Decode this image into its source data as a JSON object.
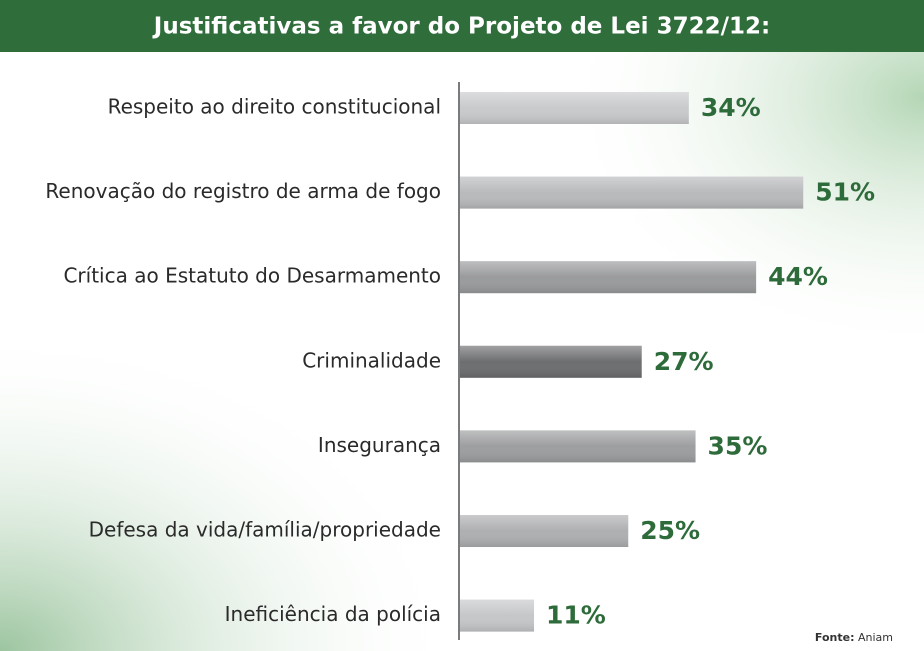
{
  "chart_data": {
    "type": "bar",
    "orientation": "horizontal",
    "title": "Justificativas a favor do Projeto de Lei 3722/12:",
    "categories": [
      "Respeito ao direito constitucional",
      "Renovação do registro de arma de fogo",
      "Crítica ao Estatuto do Desarmamento",
      "Criminalidade",
      "Insegurança",
      "Defesa da vida/família/propriedade",
      "Ineficiência da polícia"
    ],
    "values": [
      34,
      51,
      44,
      27,
      35,
      25,
      11
    ],
    "value_labels": [
      "34%",
      "51%",
      "44%",
      "27%",
      "35%",
      "25%",
      "11%"
    ],
    "colors": [
      "#c9cacc",
      "#b9babc",
      "#9a9b9d",
      "#6d6e70",
      "#9d9ea0",
      "#aeafb1",
      "#c6c7c9"
    ],
    "label_color": "#2e6b3a",
    "source_label": "Fonte:",
    "source": "Aniam"
  }
}
